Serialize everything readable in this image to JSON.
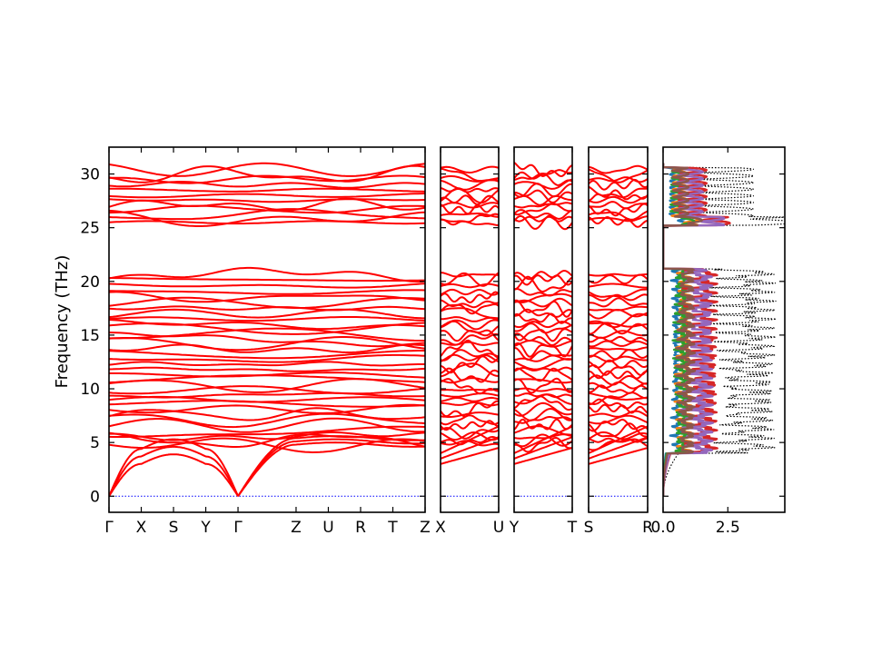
{
  "chart_data": {
    "type": "line",
    "ylabel": "Frequency (THz)",
    "ylim": [
      -1.5,
      32.5
    ],
    "yticks": [
      0,
      5,
      10,
      15,
      20,
      25,
      30
    ],
    "grid": false,
    "segments": [
      {
        "labels": [
          "Γ",
          "X",
          "S",
          "Y",
          "Γ",
          "Z",
          "U",
          "R",
          "T",
          "Z"
        ],
        "label_positions": [
          0,
          1,
          2,
          3,
          4,
          5.8,
          6.8,
          7.8,
          8.8,
          9.8
        ]
      },
      {
        "labels": [
          "X",
          "U"
        ],
        "label_positions": [
          0,
          1
        ]
      },
      {
        "labels": [
          "Y",
          "T"
        ],
        "label_positions": [
          0,
          1
        ]
      },
      {
        "labels": [
          "S",
          "R"
        ],
        "label_positions": [
          0,
          1
        ]
      }
    ],
    "band_bottoms": {
      "acoustic_zone_boundary": [
        3.0,
        4.0,
        3.0
      ],
      "optical_group_low": [
        4.8,
        5.2,
        5.6,
        6.0,
        6.6,
        7.1,
        7.6,
        8.1,
        8.6,
        9.0,
        9.4,
        9.9,
        10.3,
        10.8,
        11.3,
        11.8,
        12.3,
        12.8,
        13.2,
        13.7,
        14.2,
        14.6,
        15.1,
        15.6,
        16.0,
        16.5,
        17.0,
        17.5,
        18.0,
        18.5,
        19.0,
        19.6,
        20.2,
        20.6
      ],
      "optical_group_high": [
        25.5,
        25.8,
        26.2,
        26.7,
        27.1,
        27.6,
        28.0,
        28.5,
        29.0,
        29.5,
        29.9,
        30.4
      ]
    },
    "dos": {
      "xlim": [
        0,
        4.7
      ],
      "xticks": [
        0.0,
        2.5
      ],
      "xtick_labels": [
        "0.0",
        "2.5"
      ],
      "total_color": "#000000",
      "partial_colors": [
        "#1f77b4",
        "#ff7f0e",
        "#2ca02c",
        "#d62728",
        "#9467bd",
        "#8c564b"
      ]
    },
    "band_color": "#ff0000",
    "zero_line_color": "#0000ff"
  }
}
